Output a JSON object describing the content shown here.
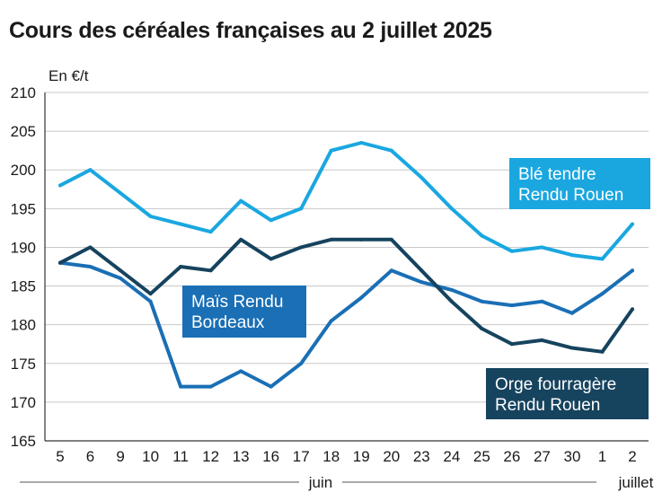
{
  "chart_data": {
    "type": "line",
    "title": "Cours des céréales françaises au 2 juillet 2025",
    "ylabel": "En €/t",
    "xlabel": "",
    "ylim": [
      165,
      210
    ],
    "yticks": [
      165,
      170,
      175,
      180,
      185,
      190,
      195,
      200,
      205,
      210
    ],
    "grid": true,
    "categories": [
      "5",
      "6",
      "9",
      "10",
      "11",
      "12",
      "13",
      "16",
      "17",
      "18",
      "19",
      "20",
      "23",
      "24",
      "25",
      "26",
      "27",
      "30",
      "1",
      "2"
    ],
    "month_labels": [
      {
        "label": "juin",
        "from_index": 0,
        "to_index": 17
      },
      {
        "label": "juillet",
        "from_index": 18,
        "to_index": 19
      }
    ],
    "series": [
      {
        "name": "Blé tendre Rendu Rouen",
        "label_lines": [
          "Blé tendre",
          "Rendu Rouen"
        ],
        "color": "#1aa7e0",
        "values": [
          198,
          200,
          197,
          194,
          193,
          192,
          196,
          193.5,
          195,
          202.5,
          203.5,
          202.5,
          199,
          195,
          191.5,
          189.5,
          190,
          189,
          188.5,
          193
        ]
      },
      {
        "name": "Maïs Rendu Bordeaux",
        "label_lines": [
          "Maïs Rendu",
          "Bordeaux"
        ],
        "color": "#1a6fb5",
        "values": [
          188,
          187.5,
          186,
          183,
          172,
          172,
          174,
          172,
          175,
          180.5,
          183.5,
          187,
          185.5,
          184.5,
          183,
          182.5,
          183,
          181.5,
          184,
          187
        ]
      },
      {
        "name": "Orge fourragère Rendu Rouen",
        "label_lines": [
          "Orge fourragère",
          "Rendu Rouen"
        ],
        "color": "#16435e",
        "values": [
          188,
          190,
          187,
          184,
          187.5,
          187,
          191,
          188.5,
          190,
          191,
          191,
          191,
          187,
          183,
          179.5,
          177.5,
          178,
          177,
          176.5,
          182
        ]
      }
    ]
  }
}
